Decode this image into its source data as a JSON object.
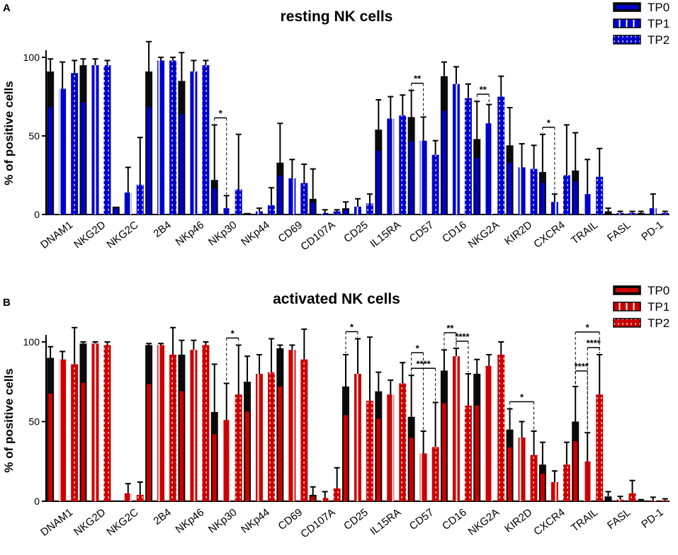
{
  "chart_data": [
    {
      "type": "bar",
      "panel_label": "A",
      "title": "resting NK cells",
      "ylabel": "% of positive cells",
      "ylim": [
        0,
        100
      ],
      "yticks": [
        0,
        50,
        100
      ],
      "legend_position": "top-right",
      "categories": [
        "DNAM1",
        "NKG2D",
        "NKG2C",
        "2B4",
        "NKp46",
        "NKp30",
        "NKp44",
        "CD69",
        "CD107A",
        "CD25",
        "IL15RA",
        "CD57",
        "CD16",
        "NKG2A",
        "KIR2D",
        "CXCR4",
        "TRAIL",
        "FASL",
        "PD-1"
      ],
      "series": [
        {
          "name": "TP0",
          "color": "#0000cc",
          "pattern": "solid",
          "values": [
            91,
            95,
            5,
            91,
            85,
            22,
            1,
            33,
            10,
            4,
            54,
            62,
            88,
            48,
            44,
            27,
            28,
            2,
            1
          ],
          "errors": [
            8,
            4,
            0,
            19,
            18,
            35,
            0,
            25,
            19,
            4,
            19,
            17,
            9,
            24,
            24,
            24,
            24,
            2,
            1
          ]
        },
        {
          "name": "TP1",
          "color": "#0000cc",
          "pattern": "line",
          "values": [
            80,
            95,
            14,
            98,
            91,
            4,
            2,
            23,
            1,
            5,
            61,
            47,
            83,
            58,
            30,
            8,
            13,
            1,
            4
          ],
          "errors": [
            17,
            4,
            16,
            2,
            7,
            8,
            2,
            12,
            2,
            5,
            14,
            15,
            11,
            12,
            15,
            5,
            22,
            1,
            9
          ]
        },
        {
          "name": "TP2",
          "color": "#0000cc",
          "pattern": "dots",
          "values": [
            90,
            95,
            19,
            98,
            95,
            16,
            6,
            20,
            2,
            7,
            63,
            38,
            74,
            75,
            29,
            25,
            24,
            1,
            1
          ],
          "errors": [
            8,
            3,
            30,
            2,
            3,
            35,
            11,
            12,
            1,
            6,
            13,
            9,
            9,
            13,
            15,
            32,
            18,
            1,
            1
          ]
        }
      ],
      "significance": [
        {
          "category": "NKp30",
          "label": "*"
        },
        {
          "category": "CD57",
          "label": "**"
        },
        {
          "category": "NKG2A",
          "label": "**"
        },
        {
          "category": "CXCR4",
          "label": "*"
        }
      ]
    },
    {
      "type": "bar",
      "panel_label": "B",
      "title": "activated NK cells",
      "ylabel": "% of positive cells",
      "ylim": [
        0,
        100
      ],
      "yticks": [
        0,
        50,
        100
      ],
      "legend_position": "top-right",
      "categories": [
        "DNAM1",
        "NKG2D",
        "NKG2C",
        "2B4",
        "NKp46",
        "NKp30",
        "NKp44",
        "CD69",
        "CD107A",
        "CD25",
        "IL15RA",
        "CD57",
        "CD16",
        "NKG2A",
        "KIR2D",
        "CXCR4",
        "TRAIL",
        "FASL",
        "PD-1"
      ],
      "series": [
        {
          "name": "TP0",
          "color": "#cc0000",
          "pattern": "solid",
          "values": [
            90,
            99,
            0,
            98,
            92,
            56,
            75,
            96,
            4,
            72,
            69,
            53,
            82,
            80,
            45,
            23,
            50,
            3,
            0.5
          ],
          "errors": [
            7,
            1,
            0,
            1,
            9,
            30,
            16,
            2,
            5,
            20,
            12,
            26,
            13,
            9,
            13,
            14,
            22,
            3,
            0.5
          ]
        },
        {
          "name": "TP1",
          "color": "#cc0000",
          "pattern": "line",
          "values": [
            89,
            99,
            5,
            98,
            95,
            51,
            80,
            95,
            2,
            80,
            67,
            30,
            91,
            85,
            40,
            12,
            25,
            1,
            0.5
          ],
          "errors": [
            5,
            1,
            6,
            1,
            6,
            23,
            12,
            3,
            4,
            22,
            9,
            14,
            5,
            7,
            10,
            7,
            18,
            2,
            2
          ]
        },
        {
          "name": "TP2",
          "color": "#cc0000",
          "pattern": "dots",
          "values": [
            86,
            98,
            4,
            92,
            98,
            67,
            81,
            89,
            8,
            63,
            74,
            34,
            60,
            92,
            29,
            23,
            67,
            5,
            0.5
          ],
          "errors": [
            23,
            2,
            8,
            17,
            2,
            31,
            21,
            19,
            13,
            40,
            13,
            28,
            20,
            8,
            15,
            14,
            25,
            8,
            1
          ]
        }
      ],
      "significance": [
        {
          "category": "NKp30",
          "label": "*"
        },
        {
          "category": "CD25",
          "label": "*"
        },
        {
          "category": "CD57",
          "label": "*"
        },
        {
          "category": "CD57",
          "label": "****"
        },
        {
          "category": "CD16",
          "label": "**"
        },
        {
          "category": "CD16",
          "label": "****"
        },
        {
          "category": "KIR2D",
          "label": "*"
        },
        {
          "category": "TRAIL",
          "label": "*"
        },
        {
          "category": "TRAIL",
          "label": "****"
        },
        {
          "category": "TRAIL",
          "label": "****"
        }
      ]
    }
  ]
}
